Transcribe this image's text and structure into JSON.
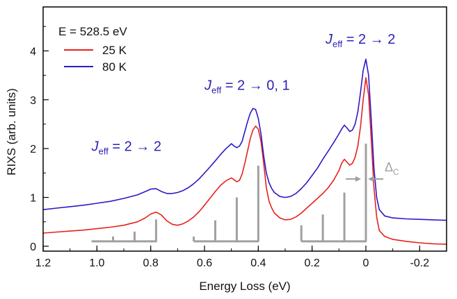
{
  "chart_data": {
    "type": "line",
    "title": "",
    "xlabel": "Energy Loss (eV)",
    "ylabel": "RIXS (arb. units)",
    "xlim": [
      1.2,
      -0.3
    ],
    "ylim": [
      -0.1,
      4.9
    ],
    "x_reversed": true,
    "grid": false,
    "x_ticks": [
      1.2,
      1.0,
      0.8,
      0.6,
      0.4,
      0.2,
      0.0,
      -0.2
    ],
    "x_tick_labels": [
      "1.2",
      "1.0",
      "0.8",
      "0.6",
      "0.4",
      "0.2",
      "0",
      "-0.2"
    ],
    "y_ticks": [
      0,
      1,
      2,
      3,
      4
    ],
    "y_tick_labels": [
      "0",
      "1",
      "2",
      "3",
      "4"
    ],
    "legend": {
      "placement": "top-left",
      "header": "E = 528.5 eV",
      "entries": [
        "25 K",
        "80 K"
      ]
    },
    "series": [
      {
        "name": "25 K",
        "color": "#e8201c",
        "x": [
          1.2,
          1.15,
          1.1,
          1.05,
          1.0,
          0.95,
          0.9,
          0.85,
          0.82,
          0.8,
          0.78,
          0.76,
          0.74,
          0.72,
          0.7,
          0.68,
          0.66,
          0.64,
          0.62,
          0.6,
          0.58,
          0.56,
          0.54,
          0.52,
          0.5,
          0.49,
          0.48,
          0.47,
          0.46,
          0.45,
          0.44,
          0.43,
          0.42,
          0.41,
          0.4,
          0.39,
          0.38,
          0.37,
          0.36,
          0.35,
          0.34,
          0.32,
          0.3,
          0.28,
          0.26,
          0.24,
          0.22,
          0.2,
          0.18,
          0.16,
          0.14,
          0.12,
          0.1,
          0.09,
          0.08,
          0.07,
          0.06,
          0.05,
          0.04,
          0.03,
          0.02,
          0.01,
          0.0,
          -0.01,
          -0.02,
          -0.03,
          -0.04,
          -0.05,
          -0.07,
          -0.1,
          -0.15,
          -0.2,
          -0.25,
          -0.3
        ],
        "y": [
          0.27,
          0.29,
          0.31,
          0.33,
          0.36,
          0.39,
          0.43,
          0.5,
          0.58,
          0.66,
          0.7,
          0.64,
          0.52,
          0.45,
          0.43,
          0.46,
          0.52,
          0.6,
          0.71,
          0.84,
          0.98,
          1.12,
          1.25,
          1.34,
          1.4,
          1.36,
          1.32,
          1.35,
          1.48,
          1.7,
          1.95,
          2.2,
          2.38,
          2.46,
          2.4,
          2.15,
          1.7,
          1.2,
          0.92,
          0.78,
          0.68,
          0.58,
          0.54,
          0.55,
          0.6,
          0.68,
          0.78,
          0.88,
          0.98,
          1.08,
          1.2,
          1.35,
          1.55,
          1.7,
          1.78,
          1.72,
          1.66,
          1.7,
          1.82,
          2.05,
          2.45,
          3.0,
          3.45,
          3.1,
          2.2,
          1.2,
          0.6,
          0.32,
          0.2,
          0.14,
          0.1,
          0.07,
          0.05,
          0.04
        ]
      },
      {
        "name": "80 K",
        "color": "#2a19c8",
        "x": [
          1.2,
          1.15,
          1.1,
          1.05,
          1.0,
          0.95,
          0.9,
          0.85,
          0.82,
          0.8,
          0.78,
          0.76,
          0.74,
          0.72,
          0.7,
          0.68,
          0.66,
          0.64,
          0.62,
          0.6,
          0.58,
          0.56,
          0.54,
          0.52,
          0.5,
          0.49,
          0.48,
          0.47,
          0.46,
          0.45,
          0.44,
          0.43,
          0.42,
          0.41,
          0.4,
          0.39,
          0.38,
          0.37,
          0.36,
          0.35,
          0.34,
          0.32,
          0.3,
          0.28,
          0.26,
          0.24,
          0.22,
          0.2,
          0.18,
          0.16,
          0.14,
          0.12,
          0.1,
          0.09,
          0.08,
          0.07,
          0.06,
          0.05,
          0.04,
          0.03,
          0.02,
          0.01,
          0.0,
          -0.01,
          -0.02,
          -0.03,
          -0.04,
          -0.05,
          -0.07,
          -0.1,
          -0.15,
          -0.2,
          -0.25,
          -0.3
        ],
        "y": [
          0.75,
          0.78,
          0.81,
          0.84,
          0.88,
          0.92,
          0.98,
          1.05,
          1.12,
          1.17,
          1.18,
          1.12,
          1.08,
          1.08,
          1.1,
          1.14,
          1.2,
          1.28,
          1.38,
          1.5,
          1.62,
          1.75,
          1.88,
          2.0,
          2.1,
          2.05,
          2.02,
          2.05,
          2.15,
          2.35,
          2.55,
          2.72,
          2.82,
          2.8,
          2.62,
          2.3,
          1.85,
          1.5,
          1.3,
          1.18,
          1.1,
          1.02,
          1.0,
          1.02,
          1.08,
          1.18,
          1.3,
          1.45,
          1.6,
          1.78,
          1.95,
          2.12,
          2.3,
          2.4,
          2.48,
          2.42,
          2.35,
          2.38,
          2.5,
          2.75,
          3.15,
          3.6,
          3.83,
          3.5,
          2.6,
          1.6,
          1.0,
          0.75,
          0.62,
          0.58,
          0.56,
          0.55,
          0.54,
          0.53
        ]
      }
    ],
    "stick_groups": [
      {
        "base": 0.1,
        "x_range": [
          1.02,
          0.78
        ],
        "sticks": [
          {
            "x": 0.94,
            "height": 0.1
          },
          {
            "x": 0.86,
            "height": 0.2
          },
          {
            "x": 0.78,
            "height": 0.45
          }
        ]
      },
      {
        "base": 0.1,
        "x_range": [
          0.64,
          0.4
        ],
        "sticks": [
          {
            "x": 0.64,
            "height": 0.1
          },
          {
            "x": 0.56,
            "height": 0.43
          },
          {
            "x": 0.48,
            "height": 0.9
          },
          {
            "x": 0.4,
            "height": 1.55
          }
        ]
      },
      {
        "base": 0.1,
        "x_range": [
          0.24,
          0.0
        ],
        "sticks": [
          {
            "x": 0.24,
            "height": 0.33
          },
          {
            "x": 0.16,
            "height": 0.55
          },
          {
            "x": 0.08,
            "height": 1.0
          },
          {
            "x": 0.0,
            "height": 2.0
          }
        ]
      }
    ],
    "stick_color": "#a0a0a0",
    "annotations": [
      {
        "main": "J",
        "sub": "eff",
        "rest": " = 2 → 2",
        "x": 1.02,
        "y": 1.95
      },
      {
        "main": "J",
        "sub": "eff",
        "rest": " = 2 → 0, 1",
        "x": 0.6,
        "y": 3.2
      },
      {
        "main": "J",
        "sub": "eff",
        "rest": " = 2 → 2",
        "x": 0.15,
        "y": 4.15
      }
    ],
    "delta_label": {
      "main": "Δ",
      "sub": "C"
    }
  }
}
